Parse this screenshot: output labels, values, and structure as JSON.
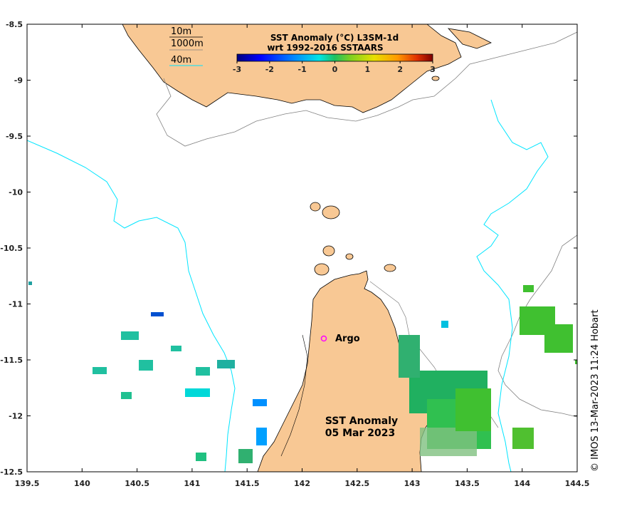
{
  "colorbar": {
    "title_line1": "SST Anomaly (°C) L3SM-1d",
    "title_line2": "wrt 1992-2016 SSTAARS",
    "ticks": [
      "-3",
      "-2",
      "-1",
      "0",
      "1",
      "2",
      "3"
    ],
    "range": [
      -3,
      3
    ],
    "colors": [
      "#00007f",
      "#0000ff",
      "#0080ff",
      "#00e5e5",
      "#20c060",
      "#60c020",
      "#e8e000",
      "#ff9900",
      "#e03000",
      "#7f0000"
    ]
  },
  "depth_legend": {
    "items": [
      "10m",
      "1000m",
      "40m"
    ]
  },
  "argo": {
    "label": "Argo",
    "color": "#ff00ff"
  },
  "map_title": {
    "line1": "SST Anomaly",
    "line2": "05 Mar 2023"
  },
  "copyright": "© IMOS 13-Mar-2023 11:24 Hobart",
  "axes": {
    "x_ticks": [
      "139.5",
      "140",
      "140.5",
      "141",
      "141.5",
      "142",
      "142.5",
      "143",
      "143.5",
      "144",
      "144.5"
    ],
    "y_ticks": [
      "-8.5",
      "-9",
      "-9.5",
      "-10",
      "-10.5",
      "-11",
      "-11.5",
      "-12",
      "-12.5"
    ],
    "x_range": [
      139.5,
      144.5
    ],
    "y_range": [
      -12.5,
      -8.5
    ]
  },
  "colors": {
    "land": "#f8c894",
    "depth_10m": "#000000",
    "depth_1000m": "#808080",
    "depth_40m": "#00e5ff"
  }
}
